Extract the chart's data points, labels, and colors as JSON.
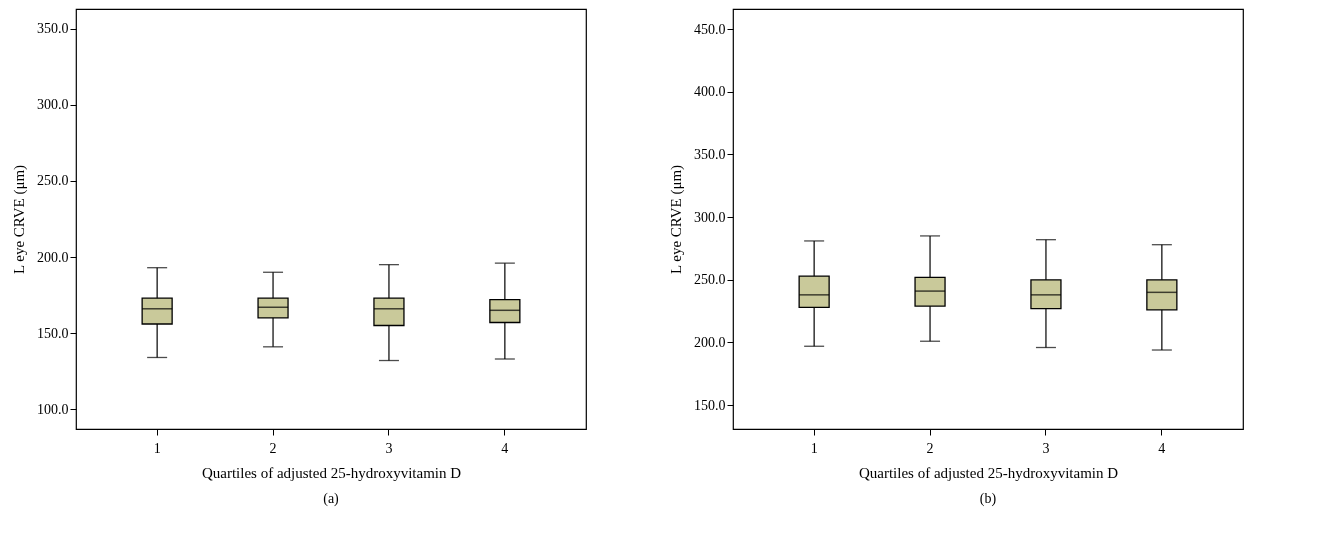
{
  "chart_data": [
    {
      "type": "box",
      "categories": [
        "1",
        "2",
        "3",
        "4"
      ],
      "xlabel": "Quartiles of adjusted 25-hydroxyvitamin D",
      "ylabel": "L eye CRVE (μm)",
      "ylim": [
        87,
        363
      ],
      "yticks": [
        {
          "value": 100,
          "label": "100.0"
        },
        {
          "value": 150,
          "label": "150.0"
        },
        {
          "value": 200,
          "label": "200.0"
        },
        {
          "value": 250,
          "label": "250.0"
        },
        {
          "value": 300,
          "label": "300.0"
        },
        {
          "value": 350,
          "label": "350.0"
        }
      ],
      "grid": false,
      "color": "#c9c99a",
      "annotations": [
        "(a)"
      ],
      "boxes": [
        {
          "low": 134,
          "q1": 156,
          "median": 166,
          "q3": 173,
          "high": 193
        },
        {
          "low": 141,
          "q1": 160,
          "median": 167,
          "q3": 173,
          "high": 190
        },
        {
          "low": 132,
          "q1": 155,
          "median": 166,
          "q3": 173,
          "high": 195
        },
        {
          "low": 133,
          "q1": 157,
          "median": 165,
          "q3": 172,
          "high": 196
        }
      ]
    },
    {
      "type": "box",
      "categories": [
        "1",
        "2",
        "3",
        "4"
      ],
      "xlabel": "Quartiles of adjusted 25-hydroxyvitamin D",
      "ylabel": "L eye CRVE (μm)",
      "ylim": [
        131,
        466
      ],
      "yticks": [
        {
          "value": 150,
          "label": "150.0"
        },
        {
          "value": 200,
          "label": "200.0"
        },
        {
          "value": 250,
          "label": "250.0"
        },
        {
          "value": 300,
          "label": "300.0"
        },
        {
          "value": 350,
          "label": "350.0"
        },
        {
          "value": 400,
          "label": "400.0"
        },
        {
          "value": 450,
          "label": "450.0"
        }
      ],
      "grid": false,
      "color": "#c9c99a",
      "annotations": [
        "(b)"
      ],
      "boxes": [
        {
          "low": 197,
          "q1": 228,
          "median": 238,
          "q3": 253,
          "high": 281
        },
        {
          "low": 201,
          "q1": 229,
          "median": 241,
          "q3": 252,
          "high": 285
        },
        {
          "low": 196,
          "q1": 227,
          "median": 238,
          "q3": 250,
          "high": 282
        },
        {
          "low": 194,
          "q1": 226,
          "median": 240,
          "q3": 250,
          "high": 278
        }
      ]
    }
  ]
}
